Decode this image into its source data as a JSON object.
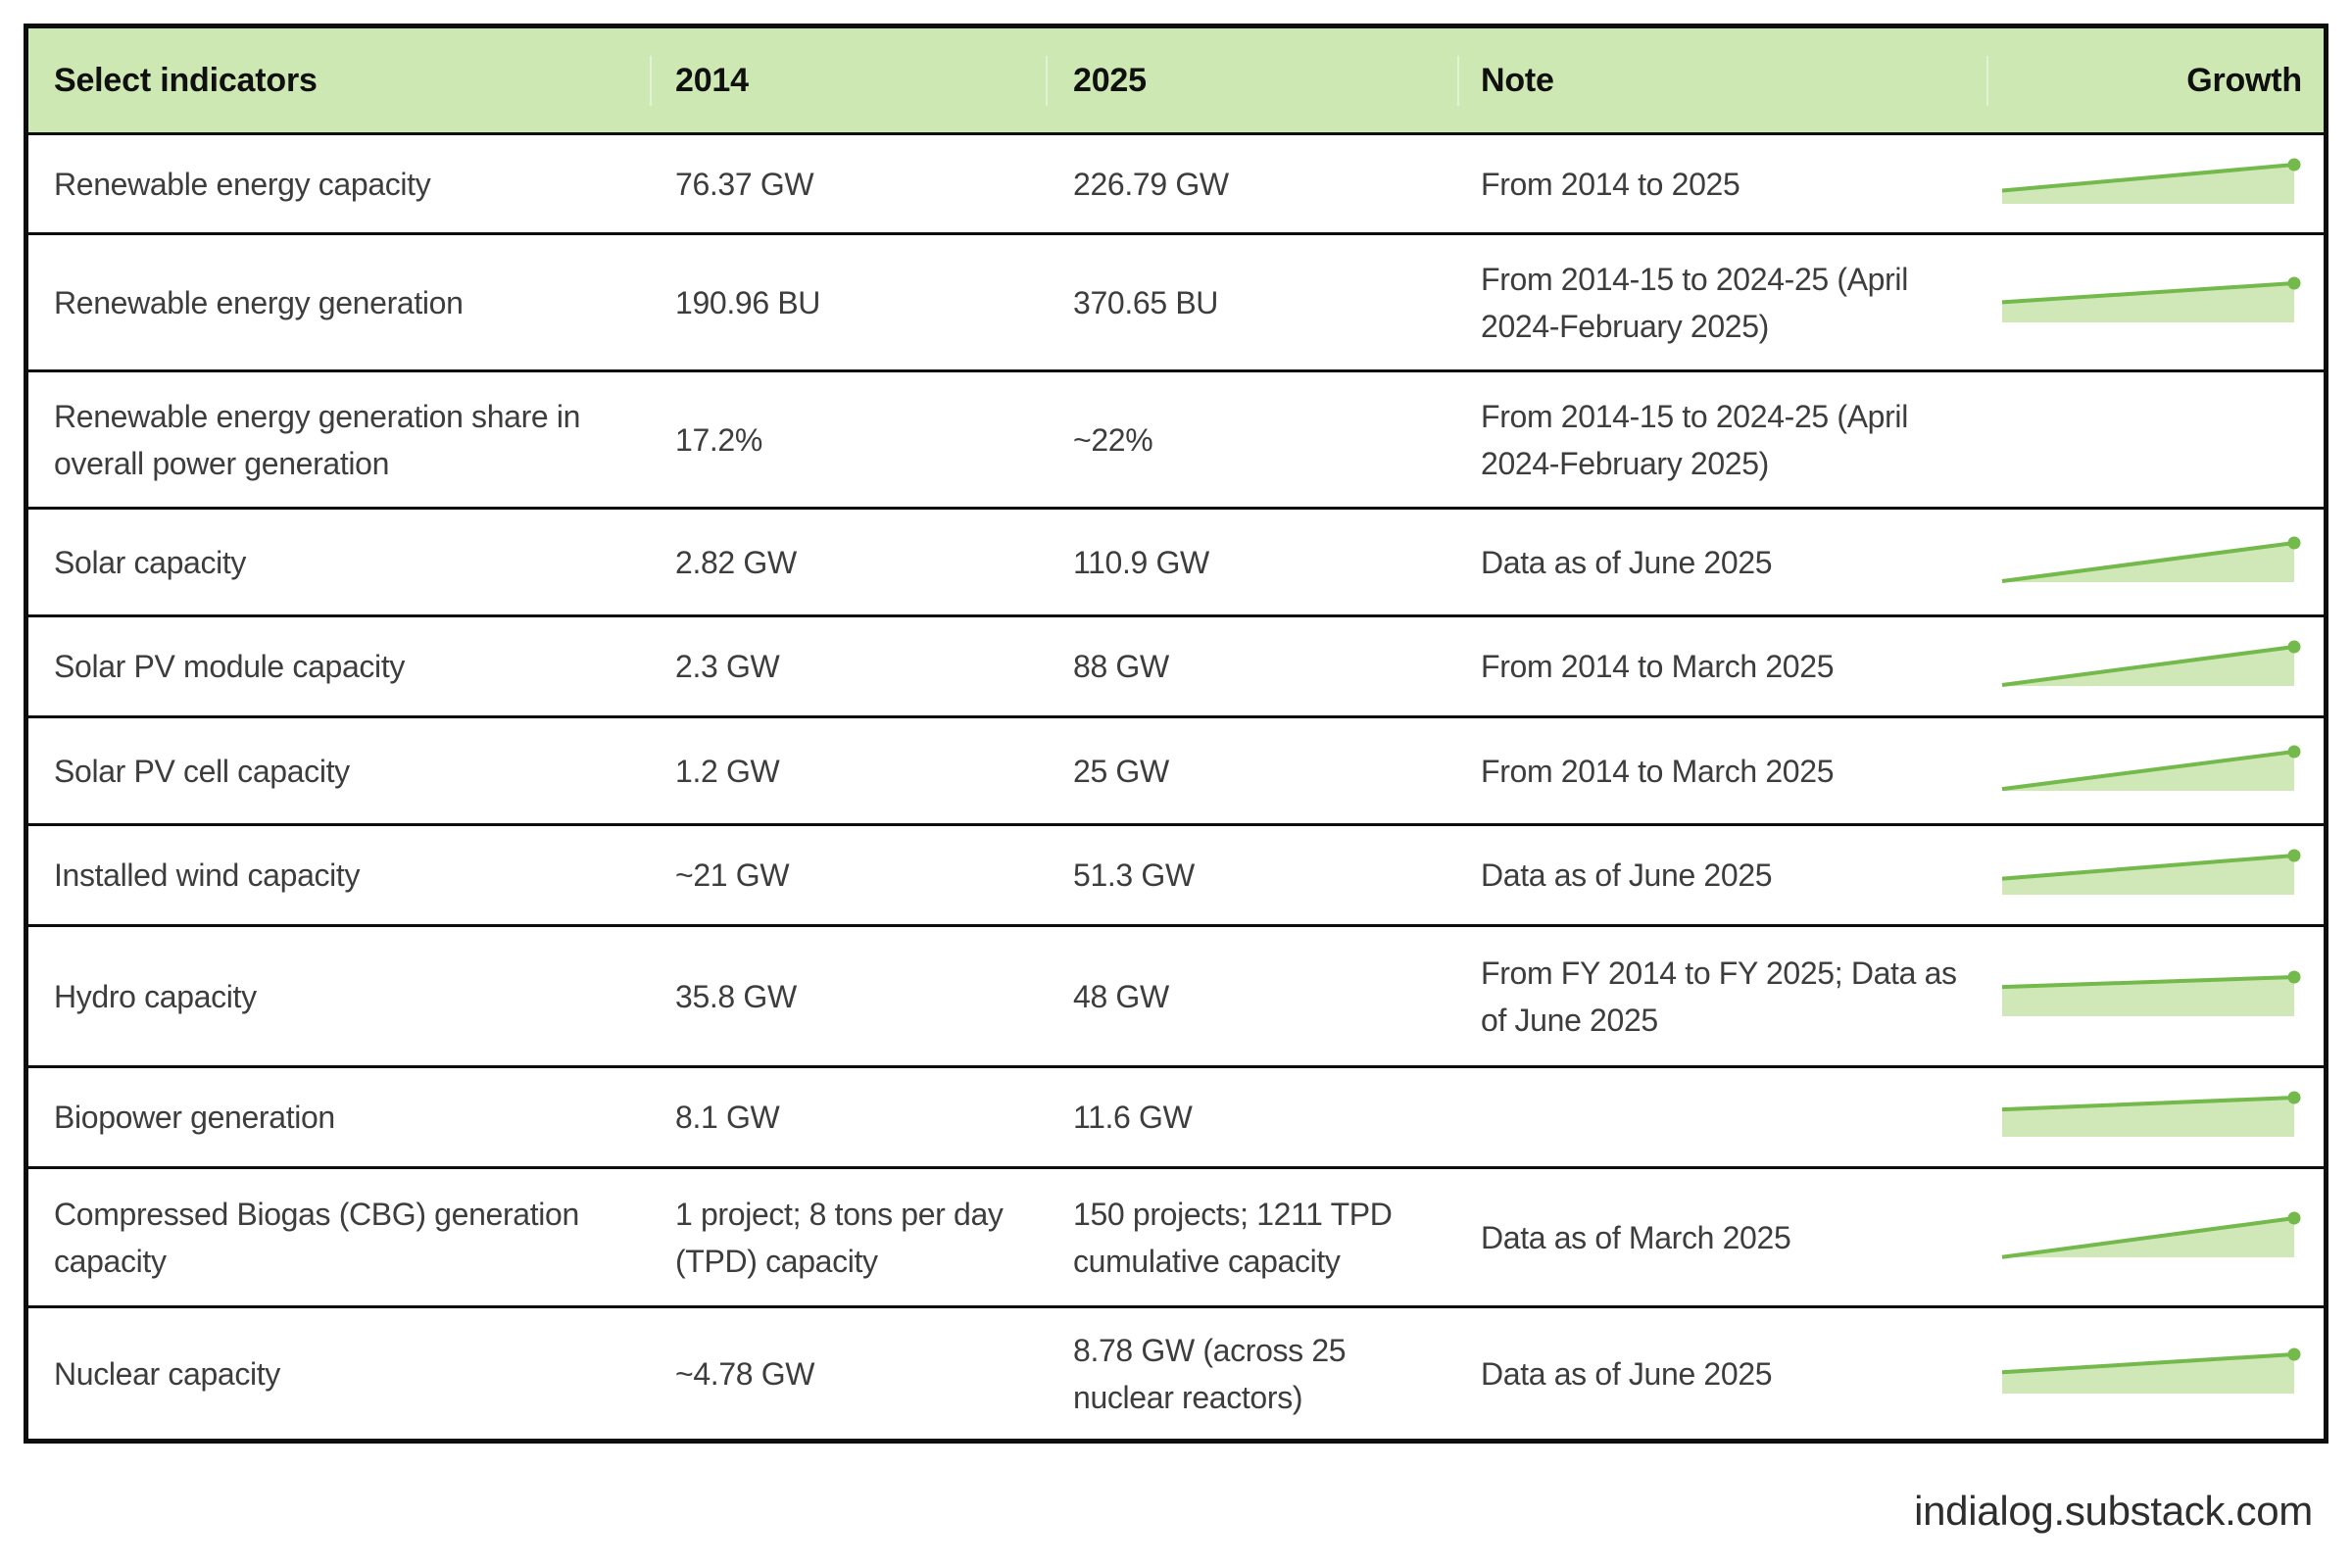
{
  "chart_data": {
    "type": "table",
    "columns": [
      "Select indicators",
      "2014",
      "2025",
      "Note",
      "Growth"
    ],
    "rows": [
      {
        "indicator": "Renewable energy capacity",
        "v2014": "76.37 GW",
        "v2025": "226.79 GW",
        "note": "From 2014 to 2025",
        "growth_spark": {
          "type": "area",
          "x": [
            2014,
            2025
          ],
          "y": [
            76.37,
            226.79
          ]
        }
      },
      {
        "indicator": "Renewable energy generation",
        "v2014": "190.96 BU",
        "v2025": "370.65 BU",
        "note": "From 2014-15 to 2024-25 (April 2024-February 2025)",
        "growth_spark": {
          "type": "area",
          "x": [
            2014,
            2025
          ],
          "y": [
            190.96,
            370.65
          ]
        }
      },
      {
        "indicator": "Renewable energy generation share in overall power generation",
        "v2014": "17.2%",
        "v2025": "~22%",
        "note": "From 2014-15 to 2024-25 (April 2024-February 2025)",
        "growth_spark": null
      },
      {
        "indicator": "Solar capacity",
        "v2014": "2.82 GW",
        "v2025": "110.9 GW",
        "note": "Data as of June 2025",
        "growth_spark": {
          "type": "area",
          "x": [
            2014,
            2025
          ],
          "y": [
            2.82,
            110.9
          ]
        }
      },
      {
        "indicator": "Solar PV module capacity",
        "v2014": "2.3 GW",
        "v2025": "88 GW",
        "note": "From 2014 to March 2025",
        "growth_spark": {
          "type": "area",
          "x": [
            2014,
            2025
          ],
          "y": [
            2.3,
            88
          ]
        }
      },
      {
        "indicator": "Solar PV cell capacity",
        "v2014": "1.2 GW",
        "v2025": "25 GW",
        "note": "From 2014 to March 2025",
        "growth_spark": {
          "type": "area",
          "x": [
            2014,
            2025
          ],
          "y": [
            1.2,
            25
          ]
        }
      },
      {
        "indicator": "Installed wind capacity",
        "v2014": "~21 GW",
        "v2025": "51.3 GW",
        "note": "Data as of June 2025",
        "growth_spark": {
          "type": "area",
          "x": [
            2014,
            2025
          ],
          "y": [
            21,
            51.3
          ]
        }
      },
      {
        "indicator": "Hydro capacity",
        "v2014": "35.8 GW",
        "v2025": "48 GW",
        "note": "From FY 2014 to FY 2025; Data as of June 2025",
        "growth_spark": {
          "type": "area",
          "x": [
            2014,
            2025
          ],
          "y": [
            35.8,
            48
          ]
        }
      },
      {
        "indicator": "Biopower generation",
        "v2014": "8.1 GW",
        "v2025": "11.6 GW",
        "note": "",
        "growth_spark": {
          "type": "area",
          "x": [
            2014,
            2025
          ],
          "y": [
            8.1,
            11.6
          ]
        }
      },
      {
        "indicator": "Compressed Biogas (CBG) generation capacity",
        "v2014": "1 project; 8 tons per day (TPD) capacity",
        "v2025": "150 projects; 1211 TPD cumulative capacity",
        "note": "Data as of March 2025",
        "growth_spark": {
          "type": "area",
          "x": [
            2014,
            2025
          ],
          "y": [
            8,
            1211
          ]
        }
      },
      {
        "indicator": "Nuclear capacity",
        "v2014": "~4.78 GW",
        "v2025": "8.78 GW (across 25 nuclear reactors)",
        "note": "Data as of June 2025",
        "growth_spark": {
          "type": "area",
          "x": [
            2014,
            2025
          ],
          "y": [
            4.78,
            8.78
          ]
        }
      }
    ],
    "legend_position": "none",
    "grid": "row-borders"
  },
  "footer": {
    "source": "indialog.substack.com"
  },
  "colors": {
    "header_bg": "#cde8b2",
    "header_text": "#101010",
    "text": "#3d3d3d",
    "border": "#0d0d0d",
    "spark_line": "#74b94c",
    "spark_fill": "#d0e8b8"
  }
}
